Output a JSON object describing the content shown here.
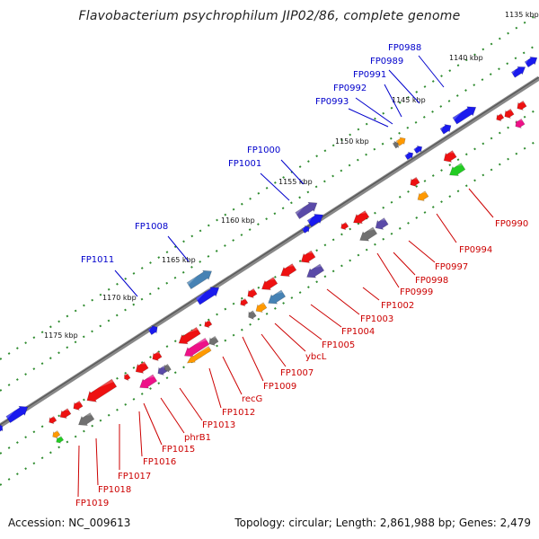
{
  "title": "Flavobacterium psychrophilum JIP02/86, complete genome",
  "footer": {
    "accession": "Accession: NC_009613",
    "topology": "Topology: circular; Length: 2,861,988 bp; Genes: 2,479"
  },
  "scale_labels": [
    "1135 kbp",
    "1140 kbp",
    "1145 kbp",
    "1150 kbp",
    "1155 kbp",
    "1160 kbp",
    "1165 kbp",
    "1170 kbp",
    "1175 kbp"
  ],
  "labels_forward": [
    "FP0988",
    "FP0989",
    "FP0991",
    "FP0992",
    "FP0993",
    "FP1000",
    "FP1001",
    "FP1008",
    "FP1011"
  ],
  "labels_reverse": [
    "FP0990",
    "FP0994",
    "FP0997",
    "FP0998",
    "FP0999",
    "FP1002",
    "FP1003",
    "FP1004",
    "FP1005",
    "ybcL",
    "FP1007",
    "FP1009",
    "recG",
    "FP1012",
    "FP1013",
    "phrB1",
    "FP1015",
    "FP1016",
    "FP1017",
    "FP1018",
    "FP1019"
  ],
  "colors": {
    "forward_label": "#0000cc",
    "reverse_label": "#cc0000",
    "backbone": "#808080",
    "tick_dots": "#2e8b2e",
    "gene_blue": "#1a1aee",
    "gene_red": "#ee1111",
    "gene_purple": "#5a4aa8",
    "gene_steel": "#4682b4",
    "gene_gray": "#707070",
    "gene_orange": "#ff9900",
    "gene_magenta": "#ee1188",
    "gene_green": "#22cc22"
  }
}
